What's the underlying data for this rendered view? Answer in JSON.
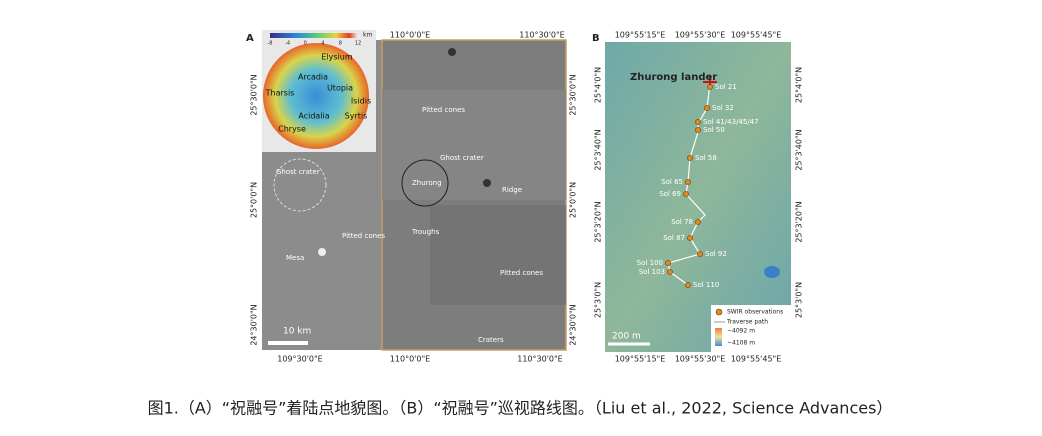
{
  "figure": {
    "panel_a": {
      "label": "A",
      "top_lon": [
        "110°0'0\"E",
        "110°30'0\"E"
      ],
      "bottom_lon": [
        "109°30'0\"E",
        "110°0'0\"E",
        "110°30'0\"E"
      ],
      "lat": [
        "25°30'0\"N",
        "25°0'0\"N",
        "24°30'0\"N"
      ],
      "annotations": [
        "Ghost crater",
        "Pitted cones",
        "Ghost crater",
        "Zhurong",
        "Ridge",
        "Troughs",
        "Pitted cones",
        "Mesa",
        "Pitted cones",
        "Craters"
      ],
      "scale_bar": "10 km",
      "inset": {
        "unit": "km",
        "scale_ticks": [
          "-8",
          "-4",
          "0",
          "4",
          "8",
          "12"
        ],
        "regions": [
          "Elysium",
          "Arcadia",
          "Tharsis",
          "Utopia",
          "Isidis",
          "Acidalia",
          "Syrtis",
          "Chryse"
        ]
      }
    },
    "panel_b": {
      "label": "B",
      "lon": [
        "109°55'15\"E",
        "109°55'30\"E",
        "109°55'45\"E"
      ],
      "lat": [
        "25°4'0\"N",
        "25°3'40\"N",
        "25°3'20\"N",
        "25°3'0\"N"
      ],
      "lander": "Zhurong lander",
      "sols": [
        "Sol 21",
        "Sol 32",
        "Sol 41/43/45/47",
        "Sol 50",
        "Sol 58",
        "Sol 65",
        "Sol 69",
        "Sol 78",
        "Sol 87",
        "Sol 92",
        "Sol 100",
        "Sol 103",
        "Sol 110"
      ],
      "legend": [
        "SWIR observations",
        "Traverse path",
        "−4092 m",
        "−4108 m"
      ],
      "scale_bar": "200 m"
    },
    "caption": "图1.（A）“祝融号”着陆点地貌图。（B）“祝融号”巡视路线图。（Liu et al., 2022, Science Advances）"
  }
}
